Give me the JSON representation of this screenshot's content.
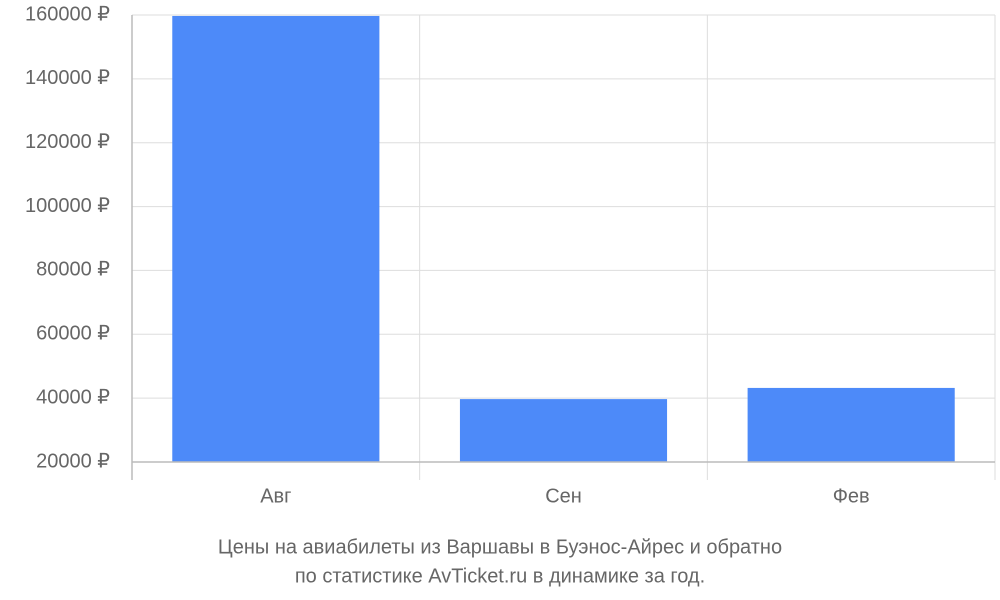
{
  "chart_data": {
    "type": "bar",
    "title": "Цены на авиабилеты из Варшавы в Буэнос-Айрес и обратно",
    "subtitle": "по статистике AvTicket.ru в динамике за год.",
    "categories": [
      "Авг",
      "Сен",
      "Фев"
    ],
    "values": [
      159700,
      39700,
      43200
    ],
    "color": "#4d8af9",
    "ylim": [
      20000,
      160000
    ],
    "yticks": [
      {
        "value": 20000,
        "label": "20000 ₽"
      },
      {
        "value": 40000,
        "label": "40000 ₽"
      },
      {
        "value": 60000,
        "label": "60000 ₽"
      },
      {
        "value": 80000,
        "label": "80000 ₽"
      },
      {
        "value": 100000,
        "label": "100000 ₽"
      },
      {
        "value": 120000,
        "label": "120000 ₽"
      },
      {
        "value": 140000,
        "label": "140000 ₽"
      },
      {
        "value": 160000,
        "label": "160000 ₽"
      }
    ],
    "grid": true
  }
}
